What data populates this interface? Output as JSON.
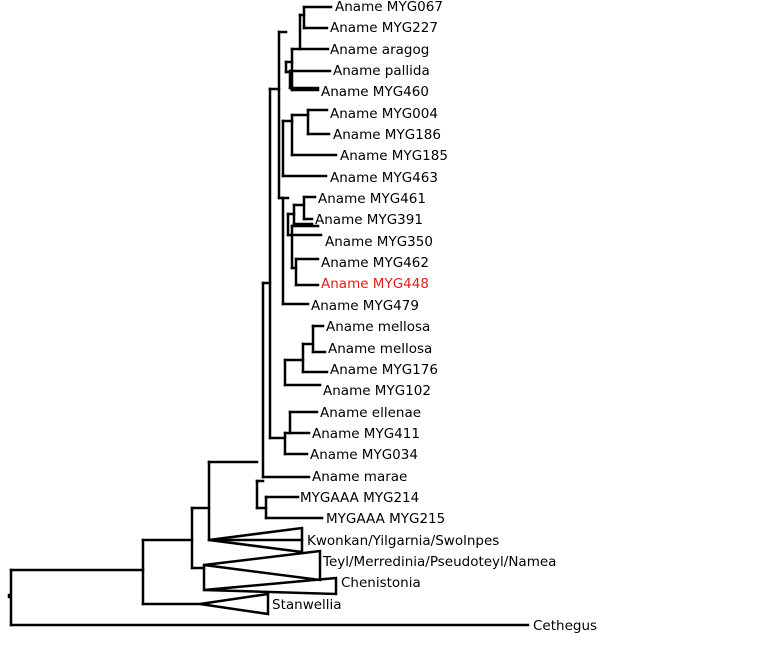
{
  "tree": {
    "highlight_color": "#d9221b",
    "line_color": "#000000",
    "taxa": [
      "Aname MYG067",
      "Aname MYG227",
      "Aname aragog",
      "Aname pallida",
      "Aname MYG460",
      "Aname MYG004",
      "Aname MYG186",
      "Aname MYG185",
      "Aname MYG463",
      "Aname MYG461",
      "Aname MYG391",
      "Aname MYG350",
      "Aname MYG462",
      "Aname MYG448",
      "Aname MYG479",
      "Aname mellosa",
      "Aname mellosa",
      "Aname MYG176",
      "Aname MYG102",
      "Aname ellenae",
      "Aname MYG411",
      "Aname MYG034",
      "Aname marae",
      "MYGAAA MYG214",
      "MYGAAA MYG215"
    ],
    "highlighted_taxon": "Aname MYG448",
    "collapsed_clades": [
      "Kwonkan/Yilgarnia/Swolnpes",
      "Teyl/Merredinia/Pseudoteyl/Namea",
      "Chenistonia",
      "Stanwellia"
    ],
    "outgroup": "Cethegus"
  }
}
